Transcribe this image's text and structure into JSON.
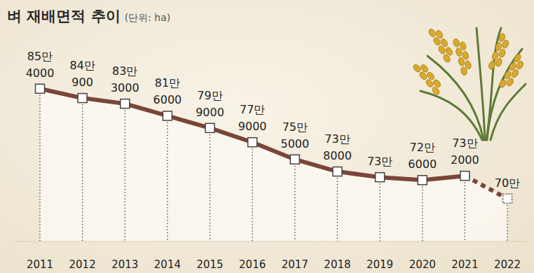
{
  "chart_data": {
    "type": "line",
    "title": "벼 재배면적 추이",
    "subtitle": "(단위: ha)",
    "categories": [
      "2011",
      "2012",
      "2013",
      "2014",
      "2015",
      "2016",
      "2017",
      "2018",
      "2019",
      "2020",
      "2021",
      "2022"
    ],
    "series": [
      {
        "color": "#7a4638",
        "line_style": "solid",
        "marker": "square",
        "values": [
          854000,
          840900,
          833000,
          816000,
          799000,
          779000,
          755000,
          738000,
          730000,
          726000,
          732000,
          null
        ],
        "value_labels": [
          "85만\n4000",
          "84만\n900",
          "83만\n3000",
          "81만\n6000",
          "79만\n9000",
          "77만\n9000",
          "75만\n5000",
          "73만\n8000",
          "73만",
          "72만\n6000",
          "73만\n2000",
          null
        ]
      },
      {
        "color": "#7a4638",
        "line_style": "dashed",
        "marker": "square",
        "values": [
          null,
          null,
          null,
          null,
          null,
          null,
          null,
          null,
          null,
          null,
          732000,
          700000
        ],
        "value_labels": [
          null,
          null,
          null,
          null,
          null,
          null,
          null,
          null,
          null,
          null,
          null,
          "70만"
        ]
      }
    ],
    "ylim": [
      640000,
      890000
    ],
    "data_labels": true,
    "tick_labels": "x",
    "grid": false
  }
}
